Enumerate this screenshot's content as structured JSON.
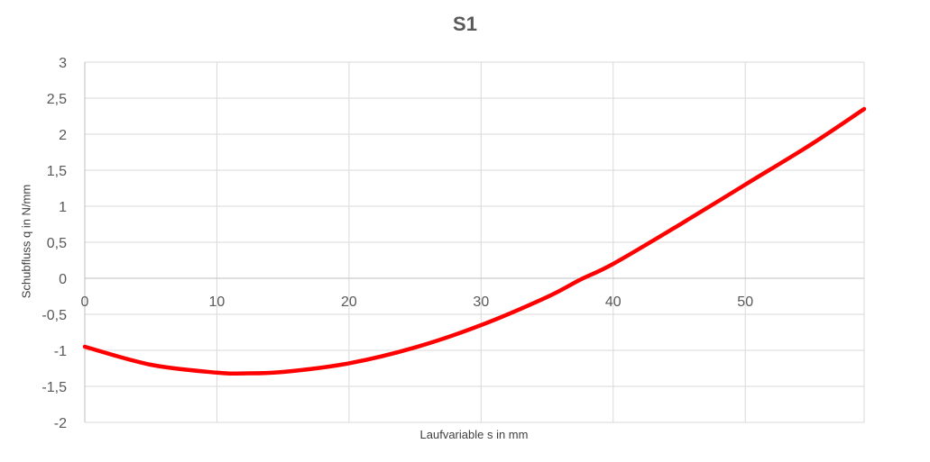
{
  "chart_data": {
    "type": "line",
    "title": "S1",
    "xlabel": "Laufvariable s in mm",
    "ylabel": "Schubfluss q in N/mm",
    "xlim": [
      0,
      59
    ],
    "ylim": [
      -2,
      3
    ],
    "x_ticks": [
      0,
      10,
      20,
      30,
      40,
      50
    ],
    "x_tick_labels": [
      "0",
      "10",
      "20",
      "30",
      "40",
      "50"
    ],
    "y_ticks": [
      3,
      2.5,
      2,
      1.5,
      1,
      0.5,
      0,
      -0.5,
      -1,
      -1.5,
      -2
    ],
    "y_tick_labels": [
      "3",
      "2,5",
      "2",
      "1,5",
      "1",
      "0,5",
      "0",
      "-0,5",
      "-1",
      "-1,5",
      "-2"
    ],
    "grid": true,
    "series": [
      {
        "color": "#ff0000",
        "x": [
          0,
          5,
          10,
          12,
          15,
          20,
          25,
          30,
          35,
          37.5,
          40,
          45,
          50,
          55,
          59
        ],
        "y": [
          -0.95,
          -1.2,
          -1.31,
          -1.32,
          -1.3,
          -1.18,
          -0.96,
          -0.65,
          -0.26,
          -0.02,
          0.2,
          0.74,
          1.3,
          1.86,
          2.35
        ]
      }
    ]
  }
}
